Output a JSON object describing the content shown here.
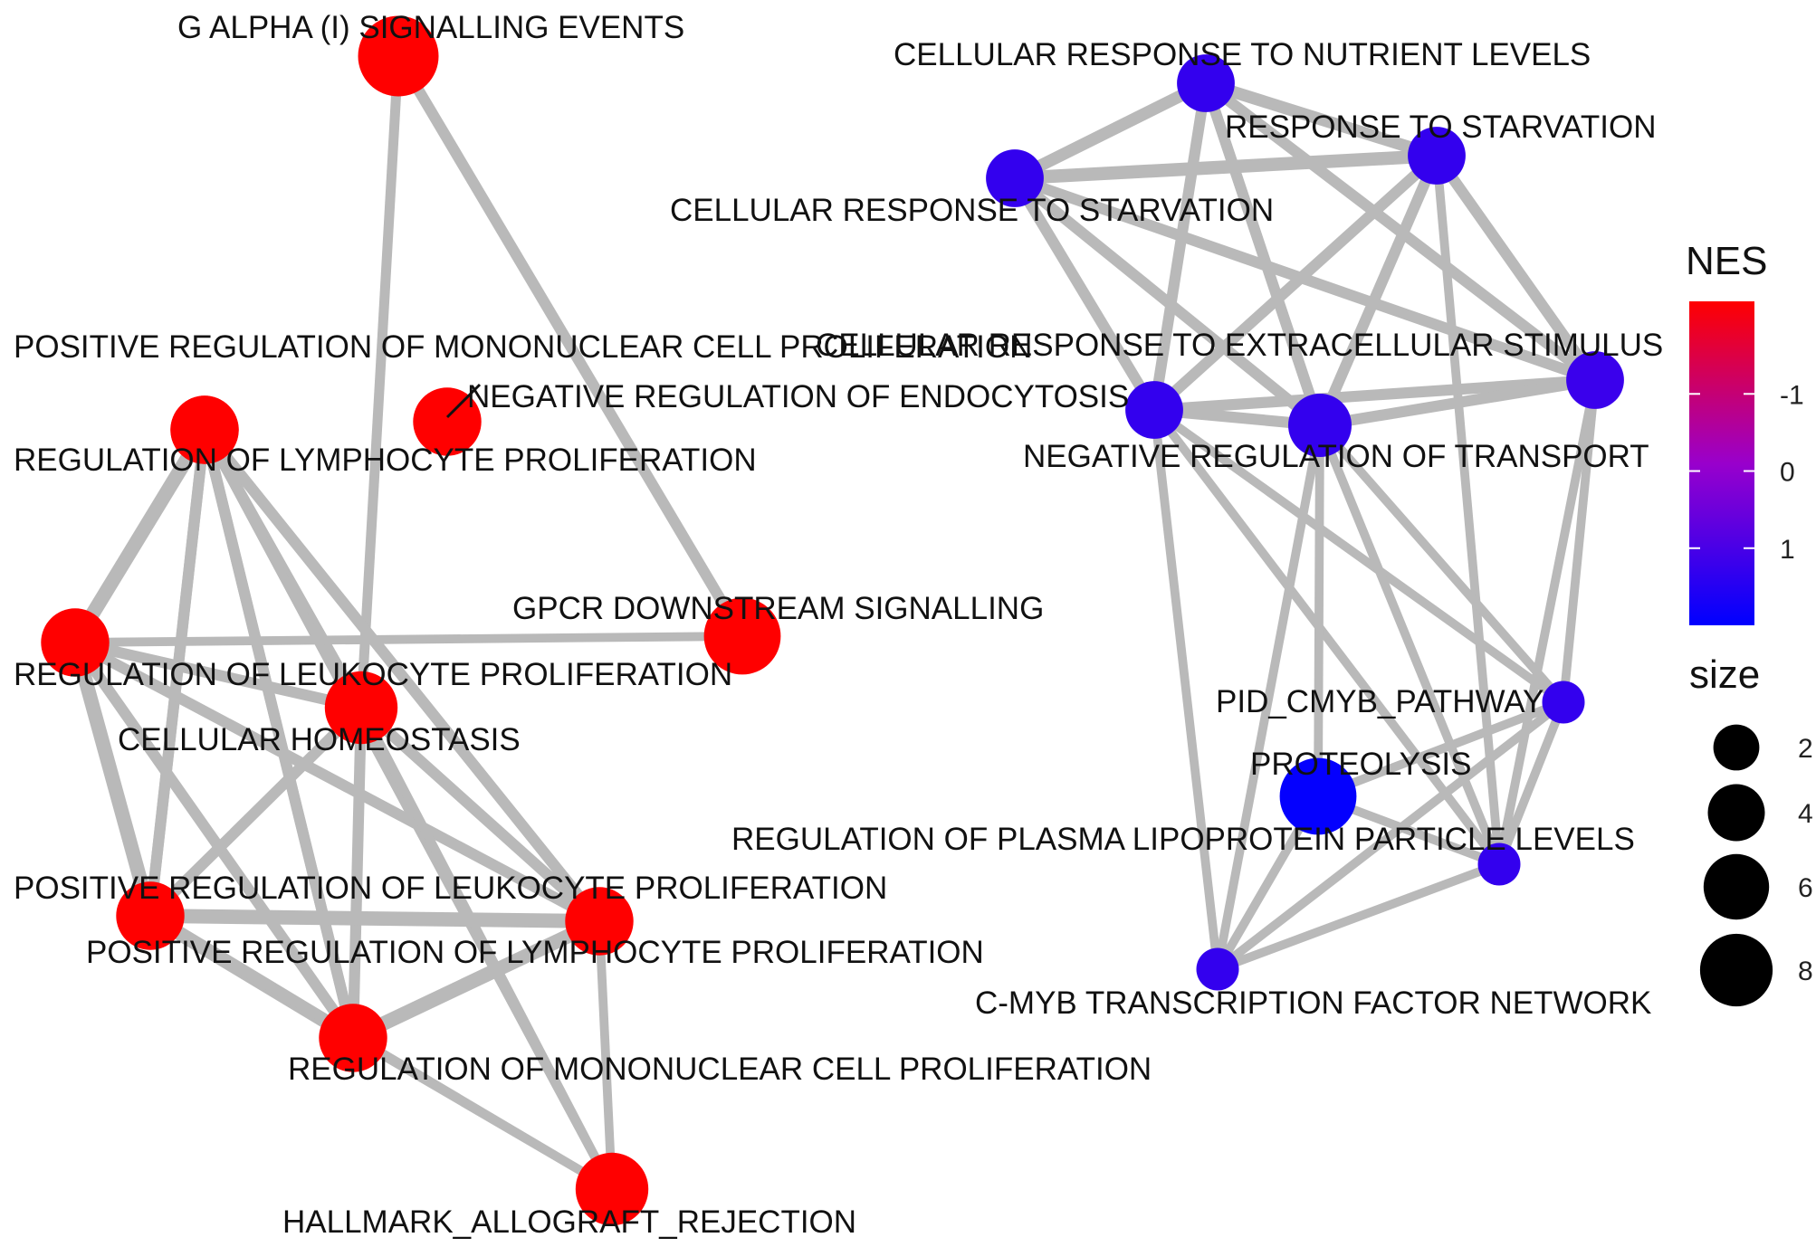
{
  "nodes": [
    {
      "id": "galpha",
      "label": "G ALPHA (I) SIGNALLING EVENTS",
      "nes": -2.2,
      "size": 8
    },
    {
      "id": "pos_mono",
      "label": "POSITIVE REGULATION OF MONONUCLEAR CELL PROLIFERATION",
      "nes": -2.2,
      "size": 5
    },
    {
      "id": "reg_lymph",
      "label": "REGULATION OF LYMPHOCYTE PROLIFERATION",
      "nes": -2.2,
      "size": 5
    },
    {
      "id": "reg_leuk",
      "label": "REGULATION OF LEUKOCYTE PROLIFERATION",
      "nes": -2.2,
      "size": 5
    },
    {
      "id": "gpcr",
      "label": "GPCR DOWNSTREAM SIGNALLING",
      "nes": -2.2,
      "size": 7
    },
    {
      "id": "cell_homeo",
      "label": "CELLULAR HOMEOSTASIS",
      "nes": -2.2,
      "size": 6
    },
    {
      "id": "pos_leuk",
      "label": "POSITIVE REGULATION OF LEUKOCYTE PROLIFERATION",
      "nes": -2.2,
      "size": 5
    },
    {
      "id": "pos_lymph",
      "label": "POSITIVE REGULATION OF LYMPHOCYTE PROLIFERATION",
      "nes": -2.2,
      "size": 5
    },
    {
      "id": "reg_mono",
      "label": "REGULATION OF MONONUCLEAR CELL PROLIFERATION",
      "nes": -2.2,
      "size": 5
    },
    {
      "id": "allograft",
      "label": "HALLMARK_ALLOGRAFT_REJECTION",
      "nes": -2.2,
      "size": 6
    },
    {
      "id": "neg_endo",
      "label": "NEGATIVE REGULATION OF ENDOCYTOSIS",
      "nes": -2.2,
      "size": 5
    },
    {
      "id": "cell_nutr",
      "label": "CELLULAR RESPONSE TO NUTRIENT LEVELS",
      "nes": 1.3,
      "size": 3
    },
    {
      "id": "resp_starv",
      "label": "RESPONSE TO STARVATION",
      "nes": 1.3,
      "size": 3
    },
    {
      "id": "cell_starv",
      "label": "CELLULAR RESPONSE TO STARVATION",
      "nes": 1.3,
      "size": 3
    },
    {
      "id": "cell_extra",
      "label": "CELLULAR RESPONSE TO EXTRACELLULAR STIMULUS",
      "nes": 1.3,
      "size": 3
    },
    {
      "id": "neg_transport",
      "label": "NEGATIVE REGULATION OF TRANSPORT",
      "nes": 1.3,
      "size": 4
    },
    {
      "id": "ext_stim",
      "label": "",
      "nes": 1.2,
      "size": 3
    },
    {
      "id": "cmyb_path",
      "label": "PID_CMYB_PATHWAY",
      "nes": 1.3,
      "size": 1
    },
    {
      "id": "proteolysis",
      "label": "PROTEOLYSIS",
      "nes": 1.95,
      "size": 7
    },
    {
      "id": "lipo",
      "label": "REGULATION OF PLASMA LIPOPROTEIN PARTICLE LEVELS",
      "nes": 1.3,
      "size": 1
    },
    {
      "id": "cmyb_net",
      "label": "C-MYB TRANSCRIPTION FACTOR NETWORK",
      "nes": 1.3,
      "size": 1
    }
  ],
  "edges": [
    {
      "source": "galpha",
      "target": "cell_homeo",
      "weight": 0.5
    },
    {
      "source": "galpha",
      "target": "gpcr",
      "weight": 0.6
    },
    {
      "source": "reg_lymph",
      "target": "pos_mono",
      "weight": 0.9
    },
    {
      "source": "reg_lymph",
      "target": "reg_leuk",
      "weight": 0.9
    },
    {
      "source": "reg_lymph",
      "target": "cell_homeo",
      "weight": 0.6
    },
    {
      "source": "reg_lymph",
      "target": "pos_leuk",
      "weight": 0.6
    },
    {
      "source": "reg_lymph",
      "target": "pos_lymph",
      "weight": 0.6
    },
    {
      "source": "reg_lymph",
      "target": "reg_mono",
      "weight": 0.6
    },
    {
      "source": "reg_lymph",
      "target": "allograft",
      "weight": 0.4
    },
    {
      "source": "pos_mono",
      "target": "reg_leuk",
      "weight": 0.7
    },
    {
      "source": "pos_mono",
      "target": "cell_homeo",
      "weight": 0.6
    },
    {
      "source": "pos_mono",
      "target": "pos_leuk",
      "weight": 0.6
    },
    {
      "source": "pos_mono",
      "target": "pos_lymph",
      "weight": 0.6
    },
    {
      "source": "pos_mono",
      "target": "reg_mono",
      "weight": 0.6
    },
    {
      "source": "pos_mono",
      "target": "allograft",
      "weight": 0.4
    },
    {
      "source": "reg_leuk",
      "target": "cell_homeo",
      "weight": 0.6
    },
    {
      "source": "reg_leuk",
      "target": "gpcr",
      "weight": 0.4
    },
    {
      "source": "reg_leuk",
      "target": "pos_leuk",
      "weight": 0.9
    },
    {
      "source": "reg_leuk",
      "target": "pos_lymph",
      "weight": 0.6
    },
    {
      "source": "reg_leuk",
      "target": "reg_mono",
      "weight": 0.6
    },
    {
      "source": "cell_homeo",
      "target": "pos_leuk",
      "weight": 0.6
    },
    {
      "source": "cell_homeo",
      "target": "pos_lymph",
      "weight": 0.6
    },
    {
      "source": "cell_homeo",
      "target": "reg_mono",
      "weight": 0.6
    },
    {
      "source": "cell_homeo",
      "target": "allograft",
      "weight": 0.4
    },
    {
      "source": "pos_leuk",
      "target": "pos_lymph",
      "weight": 0.9
    },
    {
      "source": "pos_leuk",
      "target": "reg_mono",
      "weight": 0.9
    },
    {
      "source": "pos_leuk",
      "target": "allograft",
      "weight": 0.4
    },
    {
      "source": "pos_lymph",
      "target": "reg_mono",
      "weight": 0.9
    },
    {
      "source": "pos_lymph",
      "target": "allograft",
      "weight": 0.4
    },
    {
      "source": "reg_mono",
      "target": "allograft",
      "weight": 0.4
    },
    {
      "source": "cell_nutr",
      "target": "resp_starv",
      "weight": 0.7
    },
    {
      "source": "cell_nutr",
      "target": "cell_starv",
      "weight": 0.7
    },
    {
      "source": "cell_nutr",
      "target": "cell_extra",
      "weight": 0.6
    },
    {
      "source": "cell_nutr",
      "target": "neg_transport",
      "weight": 0.6
    },
    {
      "source": "cell_nutr",
      "target": "ext_stim",
      "weight": 0.6
    },
    {
      "source": "resp_starv",
      "target": "cell_starv",
      "weight": 0.8
    },
    {
      "source": "resp_starv",
      "target": "cell_extra",
      "weight": 0.6
    },
    {
      "source": "resp_starv",
      "target": "neg_transport",
      "weight": 0.6
    },
    {
      "source": "resp_starv",
      "target": "ext_stim",
      "weight": 0.6
    },
    {
      "source": "resp_starv",
      "target": "lipo",
      "weight": 0.4
    },
    {
      "source": "cell_starv",
      "target": "cell_extra",
      "weight": 0.6
    },
    {
      "source": "cell_starv",
      "target": "neg_transport",
      "weight": 0.6
    },
    {
      "source": "cell_starv",
      "target": "ext_stim",
      "weight": 0.6
    },
    {
      "source": "cell_extra",
      "target": "neg_transport",
      "weight": 0.6
    },
    {
      "source": "cell_extra",
      "target": "ext_stim",
      "weight": 0.6
    },
    {
      "source": "cell_extra",
      "target": "cmyb_net",
      "weight": 0.4
    },
    {
      "source": "cell_extra",
      "target": "lipo",
      "weight": 0.4
    },
    {
      "source": "cell_extra",
      "target": "cmyb_path",
      "weight": 0.4
    },
    {
      "source": "neg_transport",
      "target": "ext_stim",
      "weight": 0.6
    },
    {
      "source": "neg_transport",
      "target": "proteolysis",
      "weight": 0.4
    },
    {
      "source": "neg_transport",
      "target": "lipo",
      "weight": 0.4
    },
    {
      "source": "neg_transport",
      "target": "cmyb_net",
      "weight": 0.4
    },
    {
      "source": "neg_transport",
      "target": "cmyb_path",
      "weight": 0.4
    },
    {
      "source": "ext_stim",
      "target": "cmyb_path",
      "weight": 0.4
    },
    {
      "source": "ext_stim",
      "target": "lipo",
      "weight": 0.4
    },
    {
      "source": "cmyb_path",
      "target": "cmyb_net",
      "weight": 0.4
    },
    {
      "source": "cmyb_path",
      "target": "lipo",
      "weight": 0.4
    },
    {
      "source": "proteolysis",
      "target": "cmyb_net",
      "weight": 0.4
    },
    {
      "source": "proteolysis",
      "target": "lipo",
      "weight": 0.4
    },
    {
      "source": "proteolysis",
      "target": "cmyb_path",
      "weight": 0.4
    },
    {
      "source": "lipo",
      "target": "cmyb_net",
      "weight": 0.4
    }
  ],
  "legend": {
    "nes_title": "NES",
    "nes_ticks": [
      {
        "label": "-1",
        "value": -1
      },
      {
        "label": "0",
        "value": 0
      },
      {
        "label": "1",
        "value": 1
      }
    ],
    "nes_range": [
      -2.2,
      2.0
    ],
    "color_low": "#ff0000",
    "color_mid": "#9900cc",
    "color_high": "#0000ff",
    "size_title": "size",
    "size_entries": [
      {
        "label": "2",
        "value": 2
      },
      {
        "label": "4",
        "value": 4
      },
      {
        "label": "6",
        "value": 6
      },
      {
        "label": "8",
        "value": 8
      }
    ]
  }
}
